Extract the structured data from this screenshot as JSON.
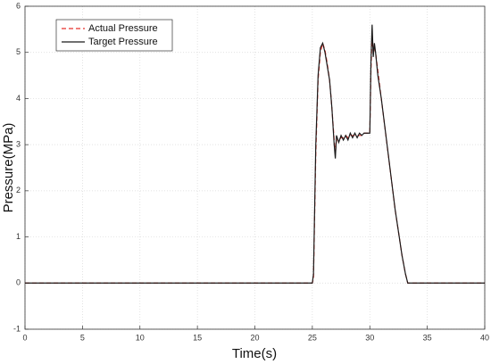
{
  "chart_data": {
    "type": "line",
    "x_label": "Time(s)",
    "y_label": "Pressure(MPa)",
    "x": [
      0,
      25,
      25.1,
      25.3,
      25.5,
      25.7,
      25.9,
      26.1,
      26.3,
      26.5,
      26.7,
      26.9,
      27.0,
      27.1,
      27.3,
      27.5,
      27.7,
      27.9,
      28.1,
      28.3,
      28.5,
      28.7,
      28.9,
      29.1,
      29.3,
      29.5,
      29.7,
      30.0,
      30.1,
      30.2,
      30.3,
      30.4,
      30.5,
      30.7,
      31.0,
      31.3,
      31.6,
      31.9,
      32.2,
      32.5,
      32.8,
      33.1,
      33.3,
      40
    ],
    "series": [
      {
        "name": "Actual Pressure",
        "color": "#e8322b",
        "dash": "dashed",
        "values": [
          0,
          0,
          0.1,
          2.8,
          4.4,
          5.0,
          5.2,
          5.05,
          4.75,
          4.4,
          3.8,
          3.1,
          2.8,
          3.1,
          3.1,
          3.15,
          3.15,
          3.2,
          3.15,
          3.2,
          3.2,
          3.2,
          3.2,
          3.2,
          3.2,
          3.25,
          3.25,
          3.25,
          4.6,
          5.4,
          5.0,
          5.1,
          5.0,
          4.6,
          4.0,
          3.4,
          2.8,
          2.2,
          1.6,
          1.1,
          0.6,
          0.2,
          0,
          0
        ]
      },
      {
        "name": "Target Pressure",
        "color": "#1a1a1a",
        "dash": "solid",
        "values": [
          0,
          0,
          0.2,
          3.0,
          4.5,
          5.1,
          5.2,
          5.0,
          4.7,
          4.4,
          3.8,
          3.0,
          2.7,
          3.2,
          3.05,
          3.2,
          3.1,
          3.2,
          3.1,
          3.25,
          3.15,
          3.25,
          3.15,
          3.25,
          3.2,
          3.25,
          3.25,
          3.25,
          4.8,
          5.6,
          4.9,
          5.2,
          5.0,
          4.5,
          4.0,
          3.4,
          2.8,
          2.2,
          1.6,
          1.1,
          0.6,
          0.2,
          0,
          0
        ]
      }
    ],
    "xlim": [
      0,
      40
    ],
    "xticks": [
      0,
      5,
      10,
      15,
      20,
      25,
      30,
      35,
      40
    ],
    "ylim": [
      -1,
      6
    ],
    "yticks": [
      -1,
      0,
      1,
      2,
      3,
      4,
      5,
      6
    ],
    "grid": true,
    "legend": "upper-left"
  }
}
